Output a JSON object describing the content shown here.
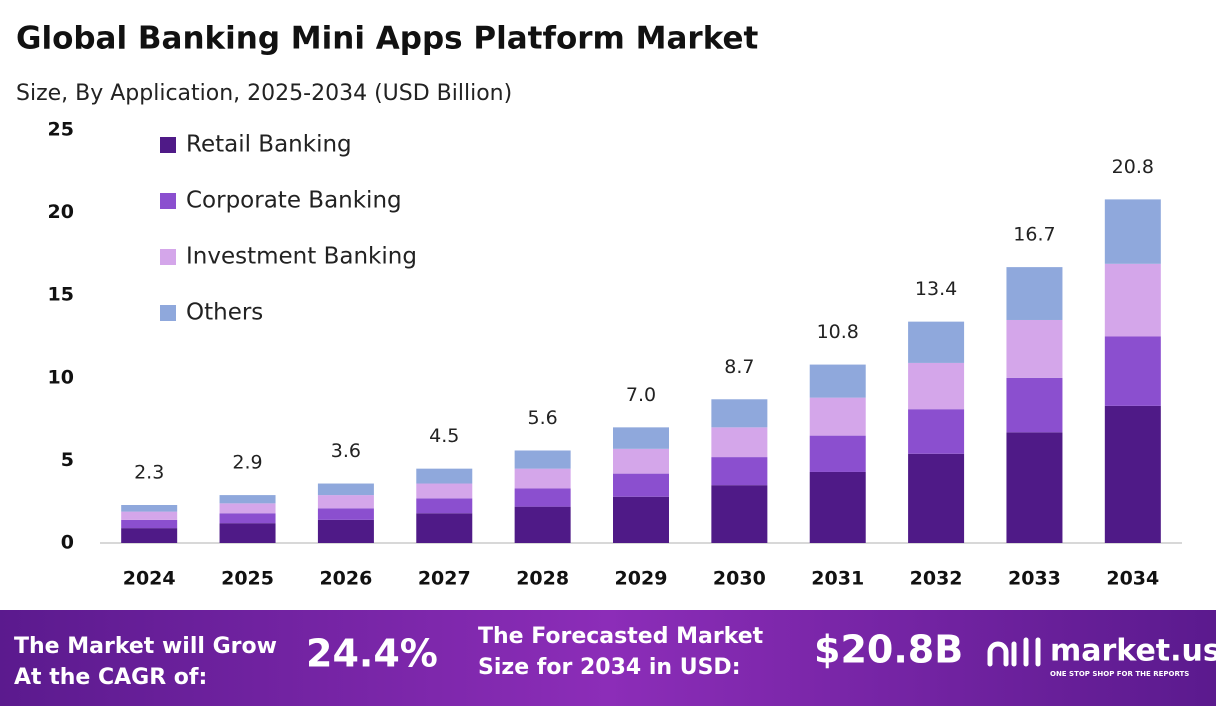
{
  "chart_data": {
    "type": "stacked_bar",
    "title": "Global Banking Mini Apps Platform Market",
    "subtitle": "Size, By Application, 2025-2034 (USD Billion)",
    "categories": [
      "2024",
      "2025",
      "2026",
      "2027",
      "2028",
      "2029",
      "2030",
      "2031",
      "2032",
      "2033",
      "2034"
    ],
    "series": [
      {
        "name": "Retail Banking",
        "color": "#4f1a87",
        "values": [
          0.9,
          1.2,
          1.4,
          1.8,
          2.2,
          2.8,
          3.5,
          4.3,
          5.4,
          6.7,
          8.3
        ]
      },
      {
        "name": "Corporate Banking",
        "color": "#8b4fcf",
        "values": [
          0.5,
          0.6,
          0.7,
          0.9,
          1.1,
          1.4,
          1.7,
          2.2,
          2.7,
          3.3,
          4.2
        ]
      },
      {
        "name": "Investment Banking",
        "color": "#d4a6ea",
        "values": [
          0.5,
          0.6,
          0.8,
          0.9,
          1.2,
          1.5,
          1.8,
          2.3,
          2.8,
          3.5,
          4.4
        ]
      },
      {
        "name": "Others",
        "color": "#8fa8dc",
        "values": [
          0.4,
          0.5,
          0.7,
          0.9,
          1.1,
          1.3,
          1.7,
          2.0,
          2.5,
          3.2,
          3.9
        ]
      }
    ],
    "totals": {
      "values": [
        2.3,
        2.9,
        3.6,
        4.5,
        5.6,
        7.0,
        8.7,
        10.8,
        13.4,
        16.7,
        20.8
      ],
      "value_labels": [
        "2.3",
        "2.9",
        "3.6",
        "4.5",
        "5.6",
        "7.0",
        "8.7",
        "10.8",
        "13.4",
        "16.7",
        "20.8"
      ]
    },
    "ylim": [
      0,
      25
    ],
    "yticks": [
      0,
      5,
      10,
      15,
      20,
      25
    ],
    "grid": false,
    "legend": "top-left"
  },
  "footer": {
    "cagr_text_1": "The Market will Grow",
    "cagr_text_2": "At the CAGR of:",
    "cagr": "24.4%",
    "forecast_text_1": "The Forecasted Market",
    "forecast_text_2": "Size for 2034 in USD:",
    "forecast": "$20.8B",
    "brand": "market.us",
    "tagline": "ONE STOP SHOP FOR THE REPORTS"
  }
}
